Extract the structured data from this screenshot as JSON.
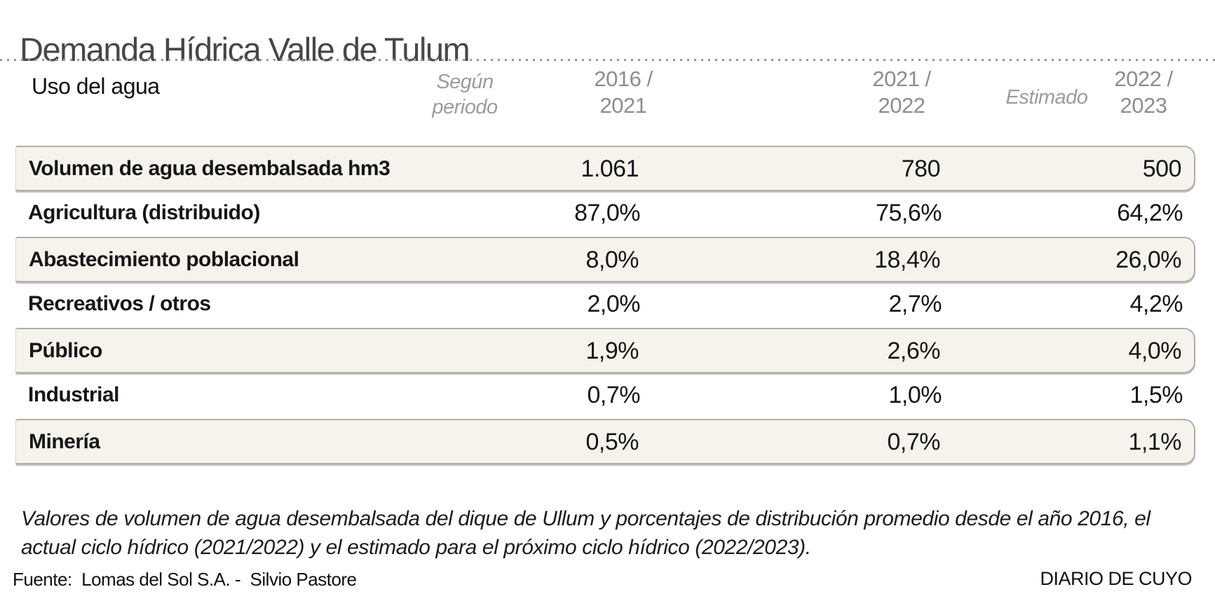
{
  "title": "Demanda Hídrica Valle de Tulum",
  "header": {
    "row_axis_label": "Uso del agua",
    "period_hint": {
      "line1": "Según",
      "line2": "periodo"
    },
    "estimated_hint": "Estimado",
    "columns": [
      {
        "line1": "2016 /",
        "line2": "2021"
      },
      {
        "line1": "2021 /",
        "line2": "2022"
      },
      {
        "line1": "2022 /",
        "line2": "2023"
      }
    ]
  },
  "table": {
    "rows": [
      {
        "label": "Volumen de agua desembalsada hm3",
        "values": [
          "1.061",
          "780",
          "500"
        ]
      },
      {
        "label": "Agricultura (distribuido)",
        "values": [
          "87,0%",
          "75,6%",
          "64,2%"
        ]
      },
      {
        "label": "Abastecimiento poblacional",
        "values": [
          "8,0%",
          "18,4%",
          "26,0%"
        ]
      },
      {
        "label": "Recreativos / otros",
        "values": [
          "2,0%",
          "2,7%",
          "4,2%"
        ]
      },
      {
        "label": "Público",
        "values": [
          "1,9%",
          "2,6%",
          "4,0%"
        ]
      },
      {
        "label": "Industrial",
        "values": [
          "0,7%",
          "1,0%",
          "1,5%"
        ]
      },
      {
        "label": "Minería",
        "values": [
          "0,5%",
          "0,7%",
          "1,1%"
        ]
      }
    ]
  },
  "footnote": "Valores de volumen de agua desembalsada del dique de Ullum y porcentajes de distribución promedio desde el año 2016, el actual ciclo hídrico (2021/2022) y el estimado para el próximo ciclo hídrico (2022/2023).",
  "source": "Fuente:  Lomas del Sol S.A. -  Silvio Pastore",
  "credit": "DIARIO DE CUYO",
  "colors": {
    "band_fill": "#f6f3ec",
    "band_border": "#b2afa7",
    "muted_header_text": "#8d8d8d",
    "italic_hint_text": "#9c9c9c",
    "title_text": "#474747"
  },
  "chart_data": {
    "type": "table",
    "title": "Demanda Hídrica Valle de Tulum",
    "row_dimension": "Uso del agua",
    "categories": [
      "2016 / 2021",
      "2021 / 2022",
      "2022 / 2023 (Estimado)"
    ],
    "series": [
      {
        "name": "Volumen de agua desembalsada hm3",
        "values": [
          1061,
          780,
          500
        ],
        "unit": "hm3"
      },
      {
        "name": "Agricultura (distribuido)",
        "values": [
          87.0,
          75.6,
          64.2
        ],
        "unit": "%"
      },
      {
        "name": "Abastecimiento poblacional",
        "values": [
          8.0,
          18.4,
          26.0
        ],
        "unit": "%"
      },
      {
        "name": "Recreativos / otros",
        "values": [
          2.0,
          2.7,
          4.2
        ],
        "unit": "%"
      },
      {
        "name": "Público",
        "values": [
          1.9,
          2.6,
          4.0
        ],
        "unit": "%"
      },
      {
        "name": "Industrial",
        "values": [
          0.7,
          1.0,
          1.5
        ],
        "unit": "%"
      },
      {
        "name": "Minería",
        "values": [
          0.5,
          0.7,
          1.1
        ],
        "unit": "%"
      }
    ],
    "legend_position": "none",
    "grid": false
  }
}
